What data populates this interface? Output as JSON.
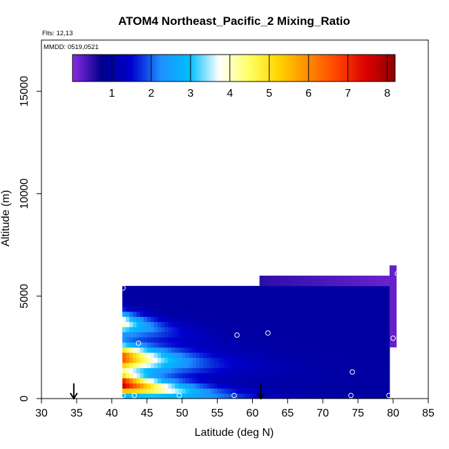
{
  "chart_data": {
    "type": "heatmap",
    "title": "ATOM4 Northeast_Pacific_2 Mixing_Ratio",
    "flights_text": "Flts: 12,13",
    "date_text": "MMDD: 0519,0521",
    "xlabel": "Latitude (deg N)",
    "ylabel": "Altitude (m)",
    "xlim": [
      30,
      85
    ],
    "ylim": [
      0,
      17500
    ],
    "x_ticks": [
      "30",
      "35",
      "40",
      "45",
      "50",
      "55",
      "60",
      "65",
      "70",
      "75",
      "80",
      "85"
    ],
    "y_ticks": [
      "0",
      "5000",
      "10000",
      "15000"
    ],
    "colorbar": {
      "range": [
        0,
        8.2
      ],
      "ticks": [
        "1",
        "2",
        "3",
        "4",
        "5",
        "6",
        "7",
        "8"
      ],
      "stops": [
        "#8a2be2",
        "#00008b",
        "#0000cd",
        "#1e90ff",
        "#00bfff",
        "#ffffff",
        "#ffff66",
        "#ffd700",
        "#ff8c00",
        "#ff4500",
        "#dc0000",
        "#8b0000"
      ]
    },
    "grid": false,
    "field": {
      "lat_range": [
        41.5,
        79.5
      ],
      "alt_range": [
        0,
        5500
      ],
      "upper_extension": {
        "lat_range": [
          61,
          80
        ],
        "alt_range": [
          5500,
          6000
        ],
        "value": 0.2
      },
      "edge_strip": {
        "lat_range": [
          79.5,
          80.5
        ],
        "alt_range": [
          2500,
          6500
        ],
        "value": 0.2
      },
      "bands": [
        {
          "name": "surface_high",
          "start_lat": 41.5,
          "start_alt": 700,
          "slope_m_per_deg": -40,
          "thickness_m": 500,
          "peak": 7.8,
          "decay_per_deg": 0.13
        },
        {
          "name": "elevated_layer",
          "start_lat": 41.5,
          "start_alt": 2000,
          "slope_m_per_deg": -22,
          "thickness_m": 650,
          "peak": 6.8,
          "decay_per_deg": 0.16
        },
        {
          "name": "upper_layer",
          "start_lat": 41.5,
          "start_alt": 3700,
          "slope_m_per_deg": -55,
          "thickness_m": 550,
          "peak": 4.2,
          "decay_per_deg": 0.22
        }
      ],
      "background": 1.0
    },
    "sample_points": [
      {
        "lat": 41.6,
        "alt": 5400
      },
      {
        "lat": 41.6,
        "alt": 150
      },
      {
        "lat": 43.2,
        "alt": 150
      },
      {
        "lat": 43.8,
        "alt": 2700
      },
      {
        "lat": 49.6,
        "alt": 150
      },
      {
        "lat": 57.4,
        "alt": 150
      },
      {
        "lat": 57.8,
        "alt": 3100
      },
      {
        "lat": 62.2,
        "alt": 3200
      },
      {
        "lat": 74.0,
        "alt": 150
      },
      {
        "lat": 74.2,
        "alt": 1300
      },
      {
        "lat": 79.4,
        "alt": 150
      },
      {
        "lat": 80.0,
        "alt": 2950
      },
      {
        "lat": 80.6,
        "alt": 6100
      }
    ],
    "arrows": [
      {
        "lat": 34.6
      },
      {
        "lat": 61.2
      }
    ]
  }
}
